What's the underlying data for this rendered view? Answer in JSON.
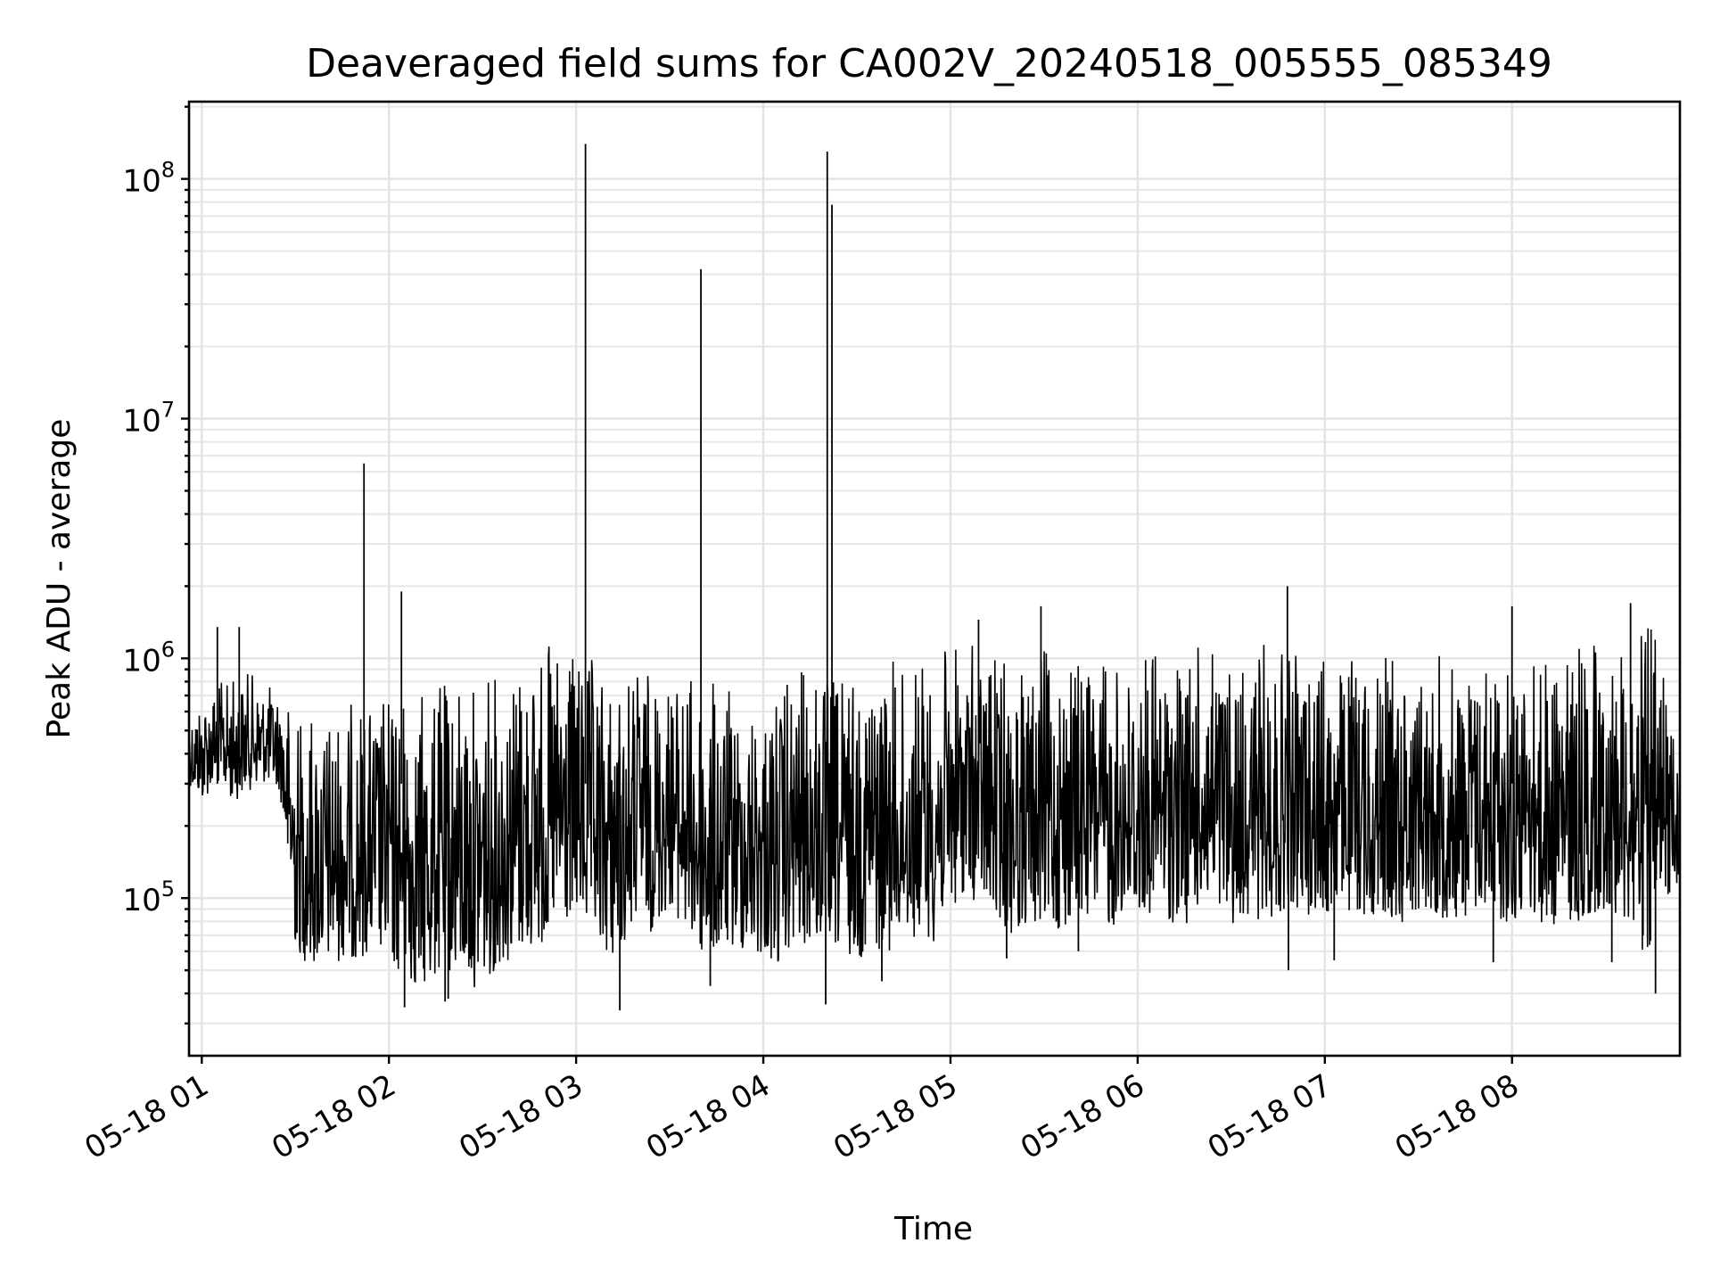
{
  "chart_data": {
    "type": "line",
    "title": "Deaveraged field sums for CA002V_20240518_005555_085349",
    "xlabel": "Time",
    "ylabel": "Peak ADU - average",
    "yscale": "log",
    "xlim": [
      "2024-05-18T00:55:55",
      "2024-05-18T08:53:49"
    ],
    "ylim": [
      22000,
      210000000
    ],
    "grid": true,
    "x_ticks": [
      {
        "time": "2024-05-18T01:00:00",
        "label": "05-18 01"
      },
      {
        "time": "2024-05-18T02:00:00",
        "label": "05-18 02"
      },
      {
        "time": "2024-05-18T03:00:00",
        "label": "05-18 03"
      },
      {
        "time": "2024-05-18T04:00:00",
        "label": "05-18 04"
      },
      {
        "time": "2024-05-18T05:00:00",
        "label": "05-18 05"
      },
      {
        "time": "2024-05-18T06:00:00",
        "label": "05-18 06"
      },
      {
        "time": "2024-05-18T07:00:00",
        "label": "05-18 07"
      },
      {
        "time": "2024-05-18T08:00:00",
        "label": "05-18 08"
      }
    ],
    "y_ticks": [
      {
        "value": 100000,
        "base": "10",
        "exp": "5"
      },
      {
        "value": 1000000,
        "base": "10",
        "exp": "6"
      },
      {
        "value": 10000000,
        "base": "10",
        "exp": "7"
      },
      {
        "value": 100000000,
        "base": "10",
        "exp": "8"
      }
    ],
    "line_color": "#000000",
    "series": [
      {
        "x": [
          "2024-05-18T00:55:55",
          "2024-05-18T01:00:00",
          "2024-05-18T01:05:00",
          "2024-05-18T01:10:00",
          "2024-05-18T01:15:00",
          "2024-05-18T01:20:00",
          "2024-05-18T01:25:00",
          "2024-05-18T01:30:00",
          "2024-05-18T01:35:00",
          "2024-05-18T01:40:00",
          "2024-05-18T01:45:00",
          "2024-05-18T01:50:00",
          "2024-05-18T01:55:00",
          "2024-05-18T02:00:00",
          "2024-05-18T02:05:00",
          "2024-05-18T02:10:00",
          "2024-05-18T02:15:00",
          "2024-05-18T02:20:00",
          "2024-05-18T02:25:00",
          "2024-05-18T02:30:00",
          "2024-05-18T02:35:00",
          "2024-05-18T02:40:00",
          "2024-05-18T02:45:00",
          "2024-05-18T02:50:00",
          "2024-05-18T02:55:00",
          "2024-05-18T03:00:00",
          "2024-05-18T03:05:00",
          "2024-05-18T03:10:00",
          "2024-05-18T03:15:00",
          "2024-05-18T03:20:00",
          "2024-05-18T03:25:00",
          "2024-05-18T03:30:00",
          "2024-05-18T03:35:00",
          "2024-05-18T03:40:00",
          "2024-05-18T03:45:00",
          "2024-05-18T03:50:00",
          "2024-05-18T03:55:00",
          "2024-05-18T04:00:00",
          "2024-05-18T04:05:00",
          "2024-05-18T04:10:00",
          "2024-05-18T04:15:00",
          "2024-05-18T04:20:00",
          "2024-05-18T04:25:00",
          "2024-05-18T04:30:00",
          "2024-05-18T04:35:00",
          "2024-05-18T04:40:00",
          "2024-05-18T04:45:00",
          "2024-05-18T04:50:00",
          "2024-05-18T04:55:00",
          "2024-05-18T05:00:00",
          "2024-05-18T05:05:00",
          "2024-05-18T05:10:00",
          "2024-05-18T05:15:00",
          "2024-05-18T05:20:00",
          "2024-05-18T05:25:00",
          "2024-05-18T05:30:00",
          "2024-05-18T05:35:00",
          "2024-05-18T05:40:00",
          "2024-05-18T05:45:00",
          "2024-05-18T05:50:00",
          "2024-05-18T05:55:00",
          "2024-05-18T06:00:00",
          "2024-05-18T06:05:00",
          "2024-05-18T06:10:00",
          "2024-05-18T06:15:00",
          "2024-05-18T06:20:00",
          "2024-05-18T06:25:00",
          "2024-05-18T06:30:00",
          "2024-05-18T06:35:00",
          "2024-05-18T06:40:00",
          "2024-05-18T06:45:00",
          "2024-05-18T06:50:00",
          "2024-05-18T06:55:00",
          "2024-05-18T07:00:00",
          "2024-05-18T07:05:00",
          "2024-05-18T07:10:00",
          "2024-05-18T07:15:00",
          "2024-05-18T07:20:00",
          "2024-05-18T07:25:00",
          "2024-05-18T07:30:00",
          "2024-05-18T07:35:00",
          "2024-05-18T07:40:00",
          "2024-05-18T07:45:00",
          "2024-05-18T07:50:00",
          "2024-05-18T07:55:00",
          "2024-05-18T08:00:00",
          "2024-05-18T08:05:00",
          "2024-05-18T08:10:00",
          "2024-05-18T08:15:00",
          "2024-05-18T08:20:00",
          "2024-05-18T08:25:00",
          "2024-05-18T08:30:00",
          "2024-05-18T08:35:00",
          "2024-05-18T08:40:00",
          "2024-05-18T08:45:00",
          "2024-05-18T08:50:00",
          "2024-05-18T08:53:49"
        ],
        "lo": [
          300000,
          250000,
          300000,
          250000,
          280000,
          300000,
          280000,
          60000,
          50000,
          50000,
          55000,
          55000,
          60000,
          50000,
          45000,
          40000,
          45000,
          48000,
          40000,
          45000,
          50000,
          55000,
          60000,
          62000,
          70000,
          80000,
          65000,
          55000,
          60000,
          80000,
          70000,
          90000,
          70000,
          55000,
          55000,
          60000,
          58000,
          55000,
          50000,
          60000,
          62000,
          60000,
          58000,
          55000,
          60000,
          60000,
          65000,
          70000,
          65000,
          90000,
          100000,
          90000,
          80000,
          70000,
          75000,
          75000,
          70000,
          80000,
          85000,
          70000,
          80000,
          75000,
          85000,
          80000,
          75000,
          90000,
          80000,
          75000,
          85000,
          80000,
          85000,
          90000,
          85000,
          80000,
          90000,
          85000,
          80000,
          85000,
          75000,
          90000,
          85000,
          80000,
          80000,
          85000,
          80000,
          75000,
          90000,
          70000,
          80000,
          75000,
          80000,
          90000,
          85000,
          60000,
          55000,
          100000,
          120000
        ],
        "hi": [
          600000,
          750000,
          800000,
          850000,
          900000,
          800000,
          750000,
          650000,
          650000,
          650000,
          650000,
          700000,
          700000,
          750000,
          800000,
          750000,
          800000,
          850000,
          900000,
          850000,
          950000,
          1100000,
          1150000,
          1150000,
          1200000,
          1100000,
          1000000,
          900000,
          850000,
          1000000,
          950000,
          900000,
          900000,
          850000,
          800000,
          750000,
          700000,
          750000,
          800000,
          900000,
          950000,
          950000,
          900000,
          1000000,
          1050000,
          1000000,
          1000000,
          1050000,
          1100000,
          1150000,
          1200000,
          1150000,
          1100000,
          1050000,
          1000000,
          1100000,
          1200000,
          1100000,
          1000000,
          1050000,
          1000000,
          1100000,
          1200000,
          1100000,
          1100000,
          1150000,
          1200000,
          1100000,
          1050000,
          1150000,
          1100000,
          1050000,
          1200000,
          1100000,
          1050000,
          1100000,
          1150000,
          1050000,
          1100000,
          1150000,
          1050000,
          1100000,
          1100000,
          1050000,
          1150000,
          1100000,
          1050000,
          1100000,
          1100000,
          1150000,
          1200000,
          1300000,
          1400000,
          1450000,
          1450000,
          700000,
          600000
        ]
      }
    ],
    "spikes": [
      {
        "x": "2024-05-18T01:05:00",
        "y": 1350000
      },
      {
        "x": "2024-05-18T01:12:00",
        "y": 1350000
      },
      {
        "x": "2024-05-18T01:52:00",
        "y": 6500000
      },
      {
        "x": "2024-05-18T02:04:00",
        "y": 1900000
      },
      {
        "x": "2024-05-18T02:18:00",
        "y": 37000
      },
      {
        "x": "2024-05-18T02:19:00",
        "y": 38000
      },
      {
        "x": "2024-05-18T02:05:00",
        "y": 35000
      },
      {
        "x": "2024-05-18T03:03:00",
        "y": 140000000
      },
      {
        "x": "2024-05-18T03:14:00",
        "y": 34000
      },
      {
        "x": "2024-05-18T03:40:00",
        "y": 42000000
      },
      {
        "x": "2024-05-18T03:43:00",
        "y": 43000
      },
      {
        "x": "2024-05-18T04:20:00",
        "y": 36000
      },
      {
        "x": "2024-05-18T04:20:30",
        "y": 130000000
      },
      {
        "x": "2024-05-18T04:22:00",
        "y": 78000000
      },
      {
        "x": "2024-05-18T04:38:00",
        "y": 45000
      },
      {
        "x": "2024-05-18T05:09:00",
        "y": 1450000
      },
      {
        "x": "2024-05-18T05:18:00",
        "y": 56000
      },
      {
        "x": "2024-05-18T05:29:00",
        "y": 1650000
      },
      {
        "x": "2024-05-18T05:41:00",
        "y": 60000
      },
      {
        "x": "2024-05-18T06:48:00",
        "y": 2000000
      },
      {
        "x": "2024-05-18T06:48:20",
        "y": 50000
      },
      {
        "x": "2024-05-18T07:03:00",
        "y": 55000
      },
      {
        "x": "2024-05-18T07:54:00",
        "y": 54000
      },
      {
        "x": "2024-05-18T08:00:00",
        "y": 1650000
      },
      {
        "x": "2024-05-18T08:32:00",
        "y": 54000
      },
      {
        "x": "2024-05-18T08:38:00",
        "y": 1700000
      },
      {
        "x": "2024-05-18T08:42:00",
        "y": 70000
      },
      {
        "x": "2024-05-18T08:46:00",
        "y": 40000
      }
    ]
  }
}
